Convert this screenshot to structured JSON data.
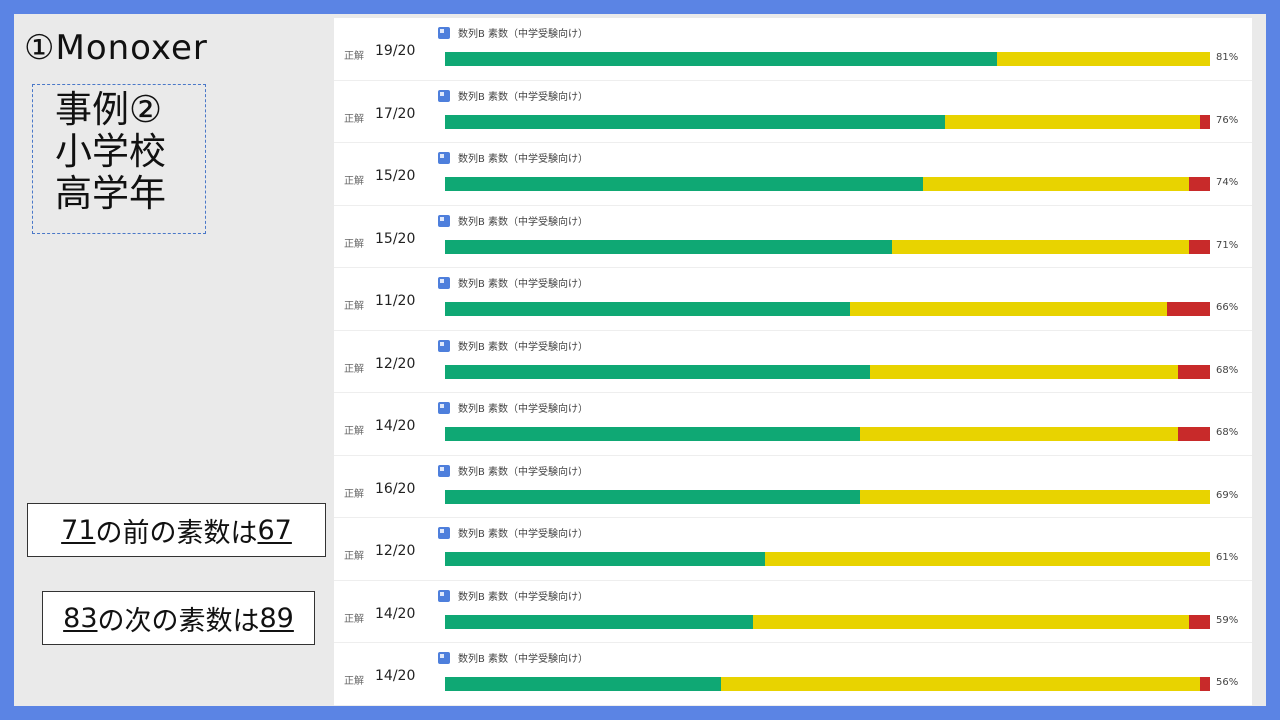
{
  "brand": "①Monoxer",
  "case_lines": [
    "事例②",
    "小学校",
    "高学年"
  ],
  "fact1": {
    "num1": "71",
    "mid": "の前の素数は",
    "num2": "67"
  },
  "fact2": {
    "num1": "83",
    "mid": "の次の素数は",
    "num2": "89"
  },
  "correct_label": "正解",
  "deck_name": "数列B 素数（中学受験向け）",
  "colors": {
    "green": "#0fa874",
    "yellow": "#e8d300",
    "red": "#c82a2a",
    "frame": "#5b84e4"
  },
  "rows": [
    {
      "score": "19/20",
      "pct": "81%",
      "green": 0.722,
      "yellow": 0.278,
      "red": 0.0
    },
    {
      "score": "17/20",
      "pct": "76%",
      "green": 0.654,
      "yellow": 0.333,
      "red": 0.013
    },
    {
      "score": "15/20",
      "pct": "74%",
      "green": 0.625,
      "yellow": 0.347,
      "red": 0.028
    },
    {
      "score": "15/20",
      "pct": "71%",
      "green": 0.584,
      "yellow": 0.389,
      "red": 0.027
    },
    {
      "score": "11/20",
      "pct": "66%",
      "green": 0.529,
      "yellow": 0.415,
      "red": 0.056
    },
    {
      "score": "12/20",
      "pct": "68%",
      "green": 0.556,
      "yellow": 0.402,
      "red": 0.042
    },
    {
      "score": "14/20",
      "pct": "68%",
      "green": 0.542,
      "yellow": 0.416,
      "red": 0.042
    },
    {
      "score": "16/20",
      "pct": "69%",
      "green": 0.542,
      "yellow": 0.458,
      "red": 0.0
    },
    {
      "score": "12/20",
      "pct": "61%",
      "green": 0.418,
      "yellow": 0.582,
      "red": 0.0
    },
    {
      "score": "14/20",
      "pct": "59%",
      "green": 0.402,
      "yellow": 0.57,
      "red": 0.028
    },
    {
      "score": "14/20",
      "pct": "56%",
      "green": 0.361,
      "yellow": 0.626,
      "red": 0.013
    }
  ]
}
